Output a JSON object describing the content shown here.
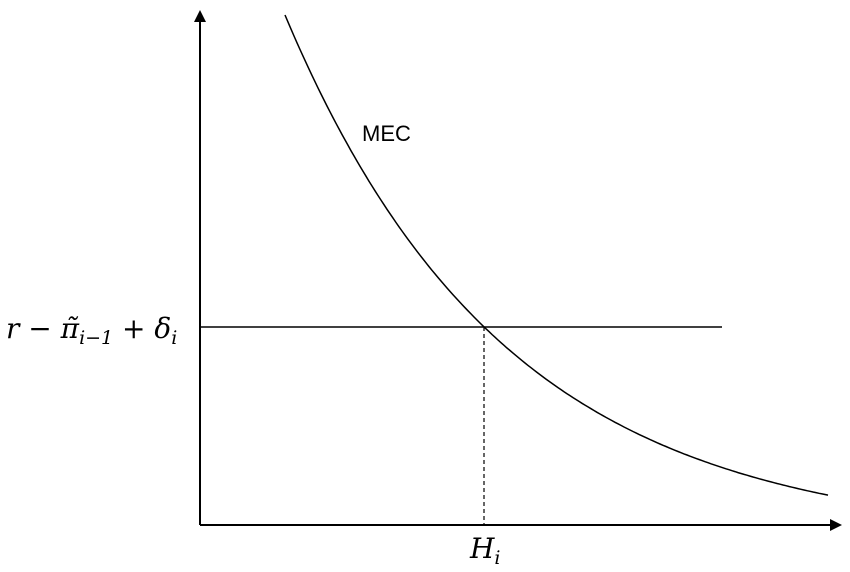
{
  "curve_label": "MEC",
  "rate_label": {
    "segments": [
      {
        "text": "r − π̃",
        "sub": "i−1"
      },
      {
        "text": " + δ",
        "sub": "i"
      }
    ]
  },
  "quantity_label": {
    "text": "H",
    "sub": "i"
  }
}
